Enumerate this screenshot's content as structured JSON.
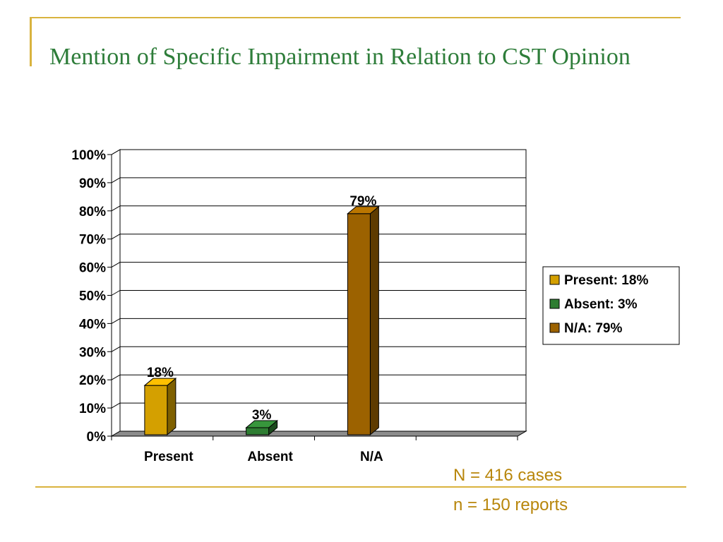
{
  "slide": {
    "title": "Mention of Specific Impairment in Relation to CST Opinion",
    "notes": [
      "N = 416 cases",
      "n = 150 reports"
    ]
  },
  "colors": {
    "frame": "#d9b33e",
    "title": "#2e7d3a",
    "notes": "#b8860b"
  },
  "chart_data": {
    "type": "bar",
    "categories": [
      "Present",
      "Absent",
      "N/A"
    ],
    "values": [
      18,
      3,
      79
    ],
    "data_labels": [
      "18%",
      "3%",
      "79%"
    ],
    "colors": [
      "#d4a000",
      "#2e7d32",
      "#9c6200"
    ],
    "ylim": [
      0,
      100
    ],
    "yticks": [
      "0%",
      "10%",
      "20%",
      "30%",
      "40%",
      "50%",
      "60%",
      "70%",
      "80%",
      "90%",
      "100%"
    ],
    "grid": true,
    "legend": {
      "placement": "right",
      "entries": [
        "Present: 18%",
        "Absent: 3%",
        "N/A: 79%"
      ]
    },
    "title": "",
    "xlabel": "",
    "ylabel": ""
  }
}
